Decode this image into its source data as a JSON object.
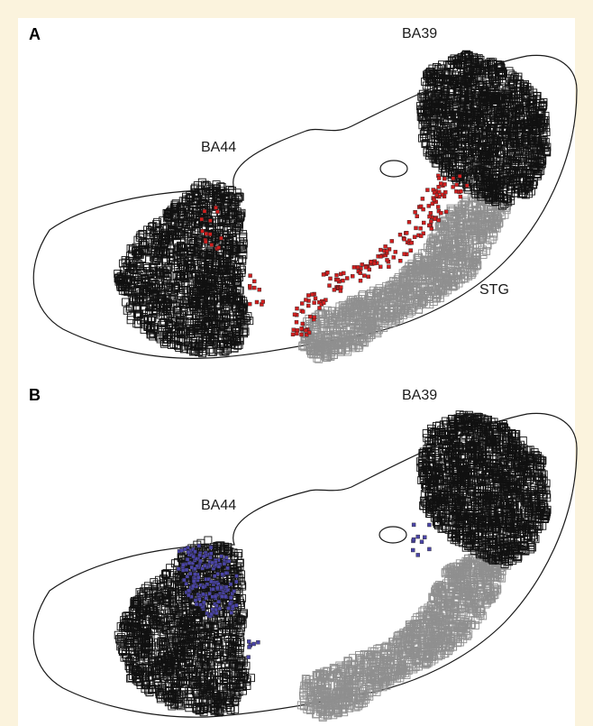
{
  "panels": [
    {
      "id": "A",
      "letter": "A",
      "labels": {
        "ba44": "BA44",
        "ba39": "BA39",
        "stg": "STG"
      },
      "overlay_color": "#d11f1f"
    },
    {
      "id": "B",
      "letter": "B",
      "labels": {
        "ba44": "BA44",
        "ba39": "BA39"
      },
      "overlay_color": "#4b45a8"
    }
  ],
  "colors": {
    "background": "#fbf3dd",
    "panel": "#ffffff",
    "outline": "#1a1a1a",
    "roi_dark": "#111111",
    "roi_gray": "#8f8f8f"
  }
}
